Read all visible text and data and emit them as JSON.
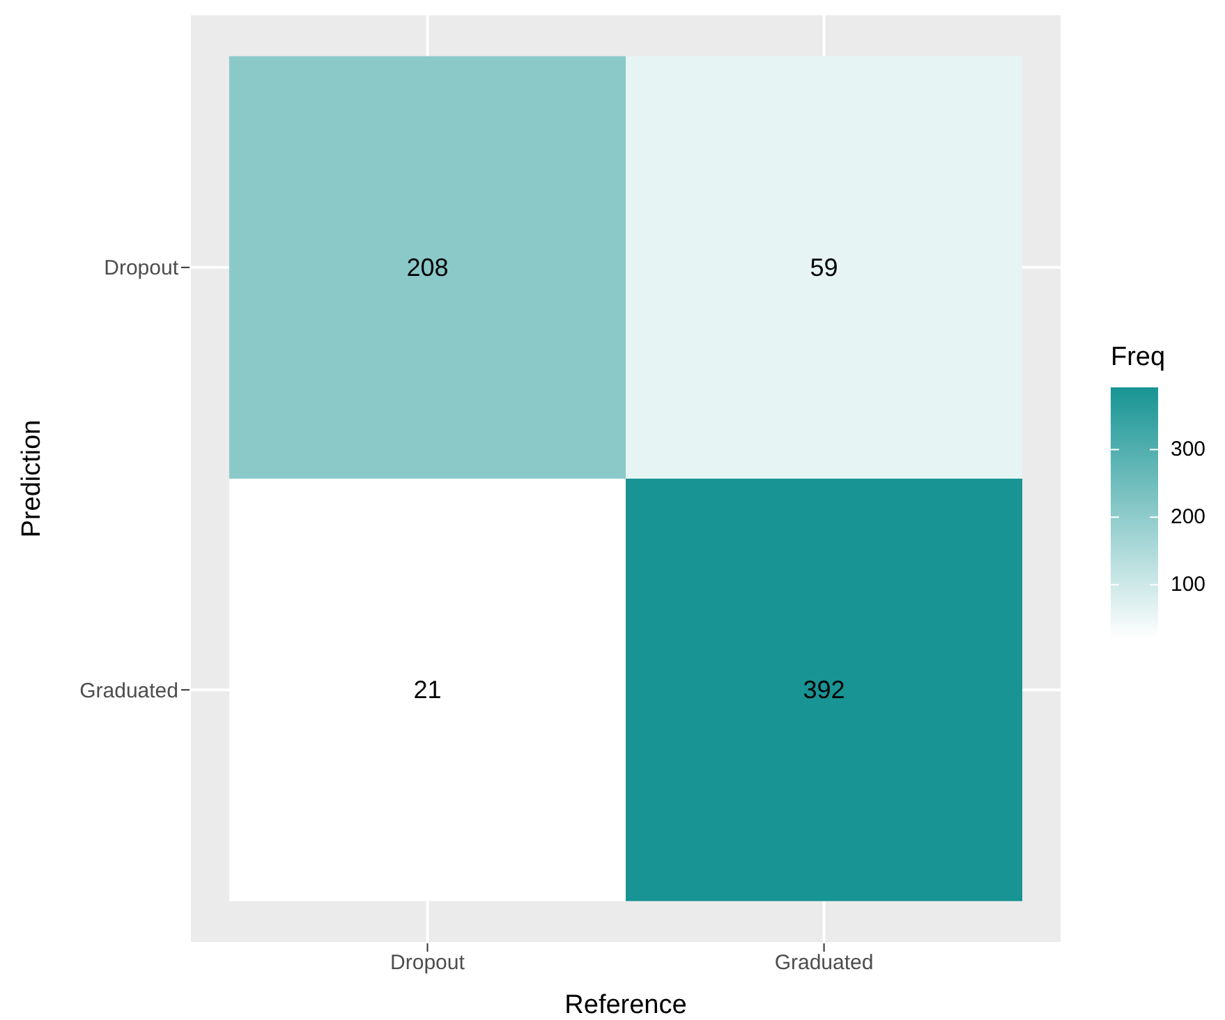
{
  "chart_data": {
    "type": "heatmap",
    "xlabel": "Reference",
    "ylabel": "Prediction",
    "clabel": "Freq",
    "categories": [
      "Dropout",
      "Graduated"
    ],
    "y_categories": [
      "Dropout",
      "Graduated"
    ],
    "cells": [
      [
        208,
        59
      ],
      [
        21,
        392
      ]
    ],
    "colors": [
      "#ffffff",
      "#189494"
    ],
    "clim": [
      21,
      392
    ],
    "cticks": [
      100,
      200,
      300
    ],
    "data_labels": true,
    "grid": true
  }
}
